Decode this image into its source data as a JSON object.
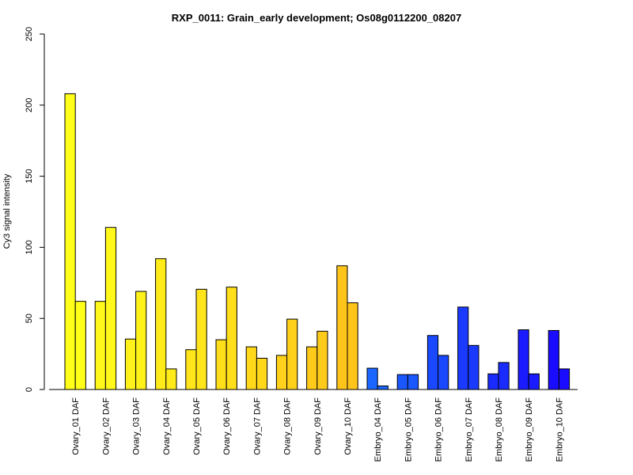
{
  "chart_data": {
    "type": "bar",
    "title": "RXP_0011: Grain_early development; Os08g0112200_08207",
    "xlabel": "",
    "ylabel": "Cy3 signal intensity",
    "ylim": [
      0,
      250
    ],
    "yticks": [
      0,
      50,
      100,
      150,
      200,
      250
    ],
    "grid": false,
    "categories": [
      "Ovary_01 DAF",
      "Ovary_02 DAF",
      "Ovary_03 DAF",
      "Ovary_04 DAF",
      "Ovary_05 DAF",
      "Ovary_06 DAF",
      "Ovary_07 DAF",
      "Ovary_08 DAF",
      "Ovary_09 DAF",
      "Ovary_10 DAF",
      "Embryo_04 DAF",
      "Embryo_05 DAF",
      "Embryo_06 DAF",
      "Embryo_07 DAF",
      "Embryo_08 DAF",
      "Embryo_09 DAF",
      "Embryo_10 DAF"
    ],
    "bar_colors": [
      "#FFFF1A",
      "#FFF81A",
      "#FFF21A",
      "#FFEB1A",
      "#FFE51A",
      "#FFDE1A",
      "#FFD81A",
      "#FFD11A",
      "#FFCB1A",
      "#FFC41A",
      "#1A66FF",
      "#1A57FF",
      "#1A48FF",
      "#1A3AFF",
      "#1A2BFF",
      "#1A1CFF",
      "#1A0DFF"
    ],
    "series": [
      {
        "values": [
          208,
          62,
          35.5,
          92,
          28,
          35,
          30,
          24,
          30,
          87,
          15,
          10.5,
          38,
          58,
          11,
          42,
          41.5
        ]
      },
      {
        "values": [
          62,
          114,
          69,
          14.5,
          70.5,
          72,
          22,
          49.5,
          41,
          61,
          2.5,
          10.5,
          24,
          31,
          19,
          11,
          14.5
        ]
      }
    ]
  }
}
